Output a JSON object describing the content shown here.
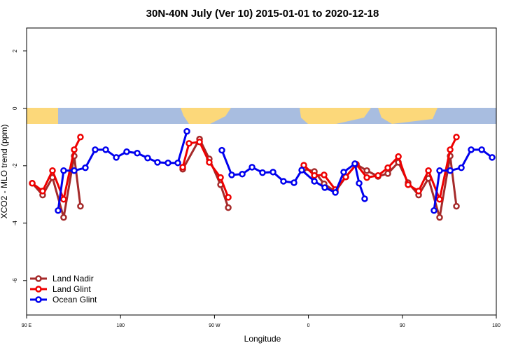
{
  "chart_data": {
    "type": "line",
    "title": "30N-40N July (Ver 10)   2015-01-01 to 2020-12-18",
    "x_label": "Longitude",
    "y_label": "XCO2 - MLO trend (ppm)",
    "xlim": [
      90,
      540
    ],
    "xticks": [
      {
        "value": 90,
        "label": "90 E"
      },
      180,
      {
        "value": 270,
        "label": "90 W"
      },
      {
        "value": 360,
        "label": "0"
      },
      {
        "value": 450,
        "label": "90"
      },
      {
        "value": 540,
        "label": "180"
      }
    ],
    "ylim": [
      -7.2,
      2.8
    ],
    "yticks": [
      2,
      0,
      -2,
      -4,
      -6
    ],
    "legend": "bottom-left",
    "series": [
      {
        "name": "Land Nadir",
        "color": "#a52a2a",
        "x": [
          95.4,
          105.4,
          114.8,
          125.5,
          135.6,
          141.6,
          null,
          239.6,
          255.7,
          265.0,
          275.8,
          283.2,
          null,
          355.6,
          365.7,
          375.0,
          385.8,
          395.8,
          405.9,
          416.0,
          426.7,
          436.1,
          446.2,
          455.5,
          465.6,
          475.0,
          485.7,
          495.8,
          501.8
        ],
        "values": [
          -2.61,
          -3.02,
          -2.41,
          -3.8,
          -1.66,
          -3.41,
          null,
          -2.12,
          -1.07,
          -1.76,
          -2.66,
          -3.46,
          null,
          -2.1,
          -2.2,
          -2.63,
          -2.9,
          -2.39,
          -1.95,
          -2.17,
          -2.37,
          -2.27,
          -1.88,
          -2.59,
          -3.02,
          -2.44,
          -3.8,
          -1.66,
          -3.41
        ]
      },
      {
        "name": "Land Glint",
        "color": "#ee0000",
        "x": [
          95.4,
          105.4,
          114.8,
          125.5,
          135.6,
          141.6,
          null,
          239.6,
          245.6,
          255.7,
          265.0,
          275.8,
          283.2,
          null,
          355.6,
          365.7,
          375.0,
          385.8,
          395.8,
          405.9,
          416.0,
          426.7,
          436.1,
          446.2,
          455.5,
          465.6,
          475.0,
          485.7,
          495.8,
          501.8
        ],
        "values": [
          -2.61,
          -2.88,
          -2.17,
          -3.17,
          -1.44,
          -1.0,
          null,
          -2.05,
          -1.22,
          -1.17,
          -1.88,
          -2.41,
          -3.1,
          null,
          -1.98,
          -2.34,
          -2.32,
          -2.83,
          -2.39,
          -1.95,
          -2.41,
          -2.34,
          -2.07,
          -1.68,
          -2.66,
          -2.88,
          -2.17,
          -3.17,
          -1.44,
          -1.0
        ]
      },
      {
        "name": "Ocean Glint",
        "color": "#0000ee",
        "x": [
          120.2,
          125.5,
          135.6,
          146.3,
          155.7,
          165.8,
          175.9,
          185.9,
          196.0,
          206.0,
          215.4,
          225.5,
          234.9,
          243.6,
          null,
          277.1,
          286.5,
          296.6,
          306.0,
          316.0,
          326.1,
          336.1,
          346.2,
          353.6,
          365.7,
          375.7,
          385.8,
          393.8,
          404.5,
          408.6,
          413.9,
          null,
          480.3,
          485.7,
          495.8,
          506.5,
          515.9,
          526.0,
          536.0
        ],
        "values": [
          -3.56,
          -2.17,
          -2.17,
          -2.07,
          -1.44,
          -1.44,
          -1.71,
          -1.51,
          -1.56,
          -1.73,
          -1.88,
          -1.9,
          -1.9,
          -0.8,
          null,
          -1.46,
          -2.32,
          -2.29,
          -2.05,
          -2.24,
          -2.22,
          -2.54,
          -2.59,
          -2.15,
          -2.54,
          -2.76,
          -2.93,
          -2.22,
          -1.93,
          -2.61,
          -3.15,
          null,
          -3.56,
          -2.17,
          -2.17,
          -2.07,
          -1.44,
          -1.44,
          -1.71
        ]
      }
    ]
  }
}
